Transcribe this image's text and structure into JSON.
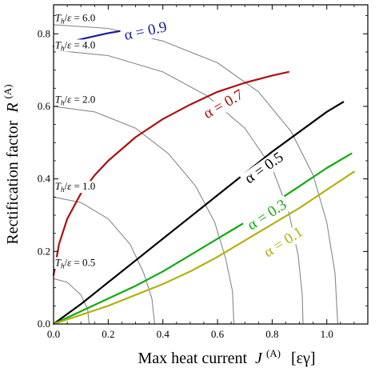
{
  "chart_data": {
    "type": "line",
    "xlabel": "Max heat current",
    "xlabel_symbol": "J",
    "xlabel_sup": "(A)",
    "xlabel_units": "[εγ]",
    "ylabel": "Rectification factor",
    "ylabel_symbol": "R",
    "ylabel_sup": "(A)",
    "xlim": [
      0,
      1.15
    ],
    "ylim": [
      0,
      0.88
    ],
    "xticks": [
      {
        "v": 0.0,
        "label": "0.0"
      },
      {
        "v": 0.2,
        "label": "0.2"
      },
      {
        "v": 0.4,
        "label": "0.4"
      },
      {
        "v": 0.6,
        "label": "0.6"
      },
      {
        "v": 0.8,
        "label": "0.8"
      },
      {
        "v": 1.0,
        "label": "1.0"
      }
    ],
    "yticks": [
      {
        "v": 0.0,
        "label": "0.0"
      },
      {
        "v": 0.2,
        "label": "0.2"
      },
      {
        "v": 0.4,
        "label": "0.4"
      },
      {
        "v": 0.6,
        "label": "0.6"
      },
      {
        "v": 0.8,
        "label": "0.8"
      }
    ],
    "series": [
      {
        "name": "α = 0.9",
        "color": "#1a1aa0",
        "label_pos": [
          0.34,
          0.795
        ],
        "label_rot": -12,
        "points": [
          [
            0.0,
            0.765
          ],
          [
            0.1,
            0.785
          ],
          [
            0.2,
            0.802
          ],
          [
            0.3,
            0.815
          ]
        ]
      },
      {
        "name": "α = 0.7",
        "color": "#aa1111",
        "label_pos": [
          0.63,
          0.595
        ],
        "label_rot": -30,
        "points": [
          [
            0.0,
            0.135
          ],
          [
            0.02,
            0.22
          ],
          [
            0.05,
            0.29
          ],
          [
            0.1,
            0.36
          ],
          [
            0.15,
            0.41
          ],
          [
            0.2,
            0.45
          ],
          [
            0.3,
            0.515
          ],
          [
            0.4,
            0.565
          ],
          [
            0.5,
            0.605
          ],
          [
            0.6,
            0.64
          ],
          [
            0.7,
            0.665
          ],
          [
            0.8,
            0.685
          ],
          [
            0.86,
            0.695
          ]
        ]
      },
      {
        "name": "α = 0.5",
        "color": "#000000",
        "label_pos": [
          0.78,
          0.42
        ],
        "label_rot": -35,
        "points": [
          [
            0.0,
            0.0
          ],
          [
            0.1,
            0.055
          ],
          [
            0.2,
            0.115
          ],
          [
            0.3,
            0.175
          ],
          [
            0.4,
            0.235
          ],
          [
            0.5,
            0.295
          ],
          [
            0.6,
            0.355
          ],
          [
            0.7,
            0.415
          ],
          [
            0.8,
            0.475
          ],
          [
            0.9,
            0.53
          ],
          [
            1.0,
            0.585
          ],
          [
            1.06,
            0.612
          ]
        ]
      },
      {
        "name": "α = 0.3",
        "color": "#11aa11",
        "label_pos": [
          0.79,
          0.29
        ],
        "label_rot": -33,
        "points": [
          [
            0.0,
            0.0
          ],
          [
            0.1,
            0.035
          ],
          [
            0.2,
            0.07
          ],
          [
            0.3,
            0.105
          ],
          [
            0.4,
            0.145
          ],
          [
            0.5,
            0.19
          ],
          [
            0.6,
            0.235
          ],
          [
            0.7,
            0.28
          ],
          [
            0.8,
            0.33
          ],
          [
            0.9,
            0.38
          ],
          [
            1.0,
            0.43
          ],
          [
            1.09,
            0.47
          ]
        ]
      },
      {
        "name": "α = 0.1",
        "color": "#b5b012",
        "label_pos": [
          0.85,
          0.215
        ],
        "label_rot": -33,
        "points": [
          [
            0.0,
            0.0
          ],
          [
            0.1,
            0.025
          ],
          [
            0.2,
            0.05
          ],
          [
            0.3,
            0.08
          ],
          [
            0.4,
            0.11
          ],
          [
            0.5,
            0.145
          ],
          [
            0.6,
            0.185
          ],
          [
            0.7,
            0.23
          ],
          [
            0.8,
            0.275
          ],
          [
            0.9,
            0.32
          ],
          [
            1.0,
            0.37
          ],
          [
            1.1,
            0.42
          ]
        ]
      }
    ],
    "isotherms": [
      {
        "label": "T_h/ε = 0.5",
        "label_pos": [
          0.005,
          0.16
        ],
        "color": "#888888",
        "points": [
          [
            0.0,
            0.125
          ],
          [
            0.05,
            0.115
          ],
          [
            0.1,
            0.08
          ],
          [
            0.125,
            0.04
          ],
          [
            0.13,
            0.0
          ]
        ]
      },
      {
        "label": "T_h/ε = 1.0",
        "label_pos": [
          0.005,
          0.37
        ],
        "color": "#888888",
        "points": [
          [
            0.0,
            0.35
          ],
          [
            0.1,
            0.335
          ],
          [
            0.2,
            0.29
          ],
          [
            0.28,
            0.22
          ],
          [
            0.33,
            0.14
          ],
          [
            0.36,
            0.07
          ],
          [
            0.37,
            0.0
          ]
        ]
      },
      {
        "label": "T_h/ε = 2.0",
        "label_pos": [
          0.005,
          0.61
        ],
        "color": "#888888",
        "points": [
          [
            0.0,
            0.6
          ],
          [
            0.15,
            0.585
          ],
          [
            0.3,
            0.54
          ],
          [
            0.42,
            0.47
          ],
          [
            0.52,
            0.38
          ],
          [
            0.59,
            0.28
          ],
          [
            0.63,
            0.18
          ],
          [
            0.655,
            0.09
          ],
          [
            0.66,
            0.0
          ]
        ]
      },
      {
        "label": "T_h/ε = 4.0",
        "label_pos": [
          0.005,
          0.76
        ],
        "color": "#888888",
        "points": [
          [
            0.0,
            0.755
          ],
          [
            0.2,
            0.74
          ],
          [
            0.4,
            0.695
          ],
          [
            0.56,
            0.63
          ],
          [
            0.7,
            0.54
          ],
          [
            0.8,
            0.43
          ],
          [
            0.86,
            0.31
          ],
          [
            0.895,
            0.19
          ],
          [
            0.91,
            0.08
          ],
          [
            0.913,
            0.0
          ]
        ]
      },
      {
        "label": "T_h/ε = 6.0",
        "label_pos": [
          0.005,
          0.835
        ],
        "color": "#888888",
        "points": [
          [
            0.0,
            0.825
          ],
          [
            0.2,
            0.815
          ],
          [
            0.4,
            0.78
          ],
          [
            0.6,
            0.72
          ],
          [
            0.75,
            0.64
          ],
          [
            0.87,
            0.53
          ],
          [
            0.95,
            0.41
          ],
          [
            1.0,
            0.28
          ],
          [
            1.03,
            0.14
          ],
          [
            1.04,
            0.0
          ]
        ]
      }
    ]
  }
}
